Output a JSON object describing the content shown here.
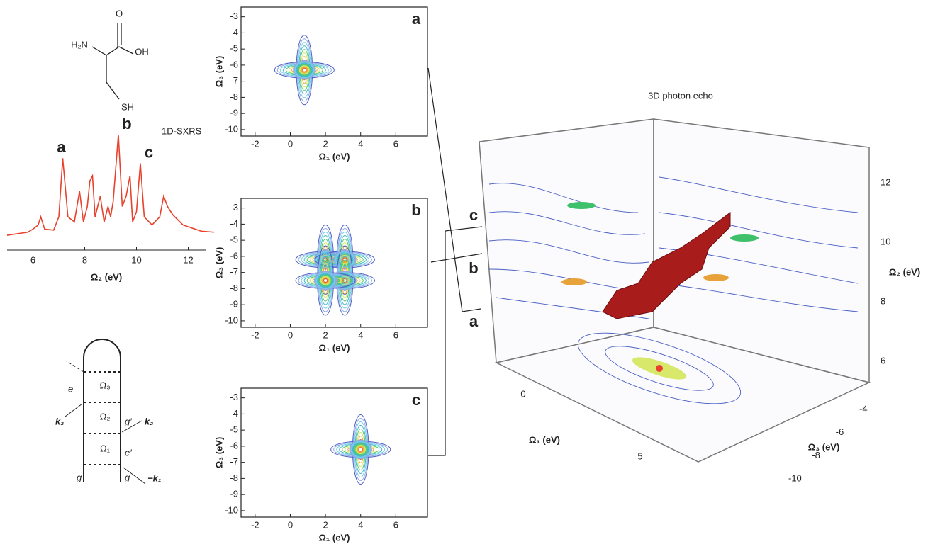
{
  "molecule": {
    "labels": [
      "O",
      "H₂N",
      "OH",
      "SH"
    ]
  },
  "spectrum": {
    "type": "line",
    "label": "1D-SXRS",
    "x_label": "Ω₂ (eV)",
    "color": "#e8412c",
    "xlim": [
      5,
      13
    ],
    "xticks": [
      6,
      8,
      10,
      12
    ],
    "x": [
      5.0,
      5.8,
      6.0,
      6.2,
      6.3,
      6.45,
      6.8,
      7.0,
      7.15,
      7.35,
      7.6,
      7.8,
      7.95,
      8.1,
      8.2,
      8.3,
      8.4,
      8.6,
      8.75,
      8.9,
      9.0,
      9.1,
      9.3,
      9.45,
      9.6,
      9.75,
      9.85,
      10.0,
      10.15,
      10.3,
      10.6,
      10.9,
      11.05,
      11.2,
      11.4,
      11.8,
      12.5,
      13.0
    ],
    "values": [
      0.02,
      0.05,
      0.08,
      0.12,
      0.2,
      0.08,
      0.07,
      0.2,
      0.77,
      0.2,
      0.15,
      0.45,
      0.15,
      0.3,
      0.55,
      0.6,
      0.2,
      0.4,
      0.15,
      0.3,
      0.2,
      0.35,
      1.0,
      0.3,
      0.4,
      0.6,
      0.15,
      0.25,
      0.72,
      0.2,
      0.12,
      0.2,
      0.4,
      0.3,
      0.22,
      0.12,
      0.06,
      0.05
    ],
    "peak_labels": [
      {
        "label": "a",
        "x": 7.15,
        "y": 0.77
      },
      {
        "label": "b",
        "x": 9.3,
        "y": 1.0
      },
      {
        "label": "c",
        "x": 10.15,
        "y": 0.72
      }
    ]
  },
  "panels": [
    {
      "letter": "a",
      "x_label": "Ω₁ (eV)",
      "y_label": "Ω₃ (eV)",
      "xlim": [
        -2.8,
        7.8
      ],
      "ylim": [
        -10.4,
        -2.4
      ],
      "xticks": [
        -2,
        0,
        2,
        4,
        6
      ],
      "yticks": [
        -3,
        -4,
        -5,
        -6,
        -7,
        -8,
        -9,
        -10
      ],
      "peaks": [
        {
          "x": 0.8,
          "y": -6.3
        }
      ]
    },
    {
      "letter": "b",
      "x_label": "Ω₁ (eV)",
      "y_label": "Ω₃ (eV)",
      "xlim": [
        -2.8,
        7.8
      ],
      "ylim": [
        -10.4,
        -2.4
      ],
      "xticks": [
        -2,
        0,
        2,
        4,
        6
      ],
      "yticks": [
        -3,
        -4,
        -5,
        -6,
        -7,
        -8,
        -9,
        -10
      ],
      "peaks": [
        {
          "x": 2.0,
          "y": -6.2
        },
        {
          "x": 3.1,
          "y": -6.2
        },
        {
          "x": 3.1,
          "y": -7.5
        },
        {
          "x": 2.0,
          "y": -7.5
        }
      ]
    },
    {
      "letter": "c",
      "x_label": "Ω₁ (eV)",
      "y_label": "Ω₃ (eV)",
      "xlim": [
        -2.8,
        7.8
      ],
      "ylim": [
        -10.4,
        -2.4
      ],
      "xticks": [
        -2,
        0,
        2,
        4,
        6
      ],
      "yticks": [
        -3,
        -4,
        -5,
        -6,
        -7,
        -8,
        -9,
        -10
      ],
      "peaks": [
        {
          "x": 4.0,
          "y": -6.2
        }
      ]
    }
  ],
  "echo3d": {
    "title": "3D photon echo",
    "slice_labels": [
      "c",
      "b",
      "a"
    ],
    "x_label": "Ω₁ (eV)",
    "xticks": [
      0,
      5
    ],
    "y_label": "Ω₃ (eV)",
    "yticks": [
      -4,
      -6,
      -8,
      -10
    ],
    "z_label": "Ω₂ (eV)",
    "zticks": [
      6,
      8,
      10,
      12
    ]
  },
  "diagram": {
    "levels": [
      "Ω₃",
      "Ω₂",
      "Ω₁"
    ],
    "states": [
      "e",
      "g′",
      "e′",
      "g",
      "g"
    ],
    "wavevectors": [
      "k₃",
      "k₂",
      "−k₁"
    ]
  }
}
